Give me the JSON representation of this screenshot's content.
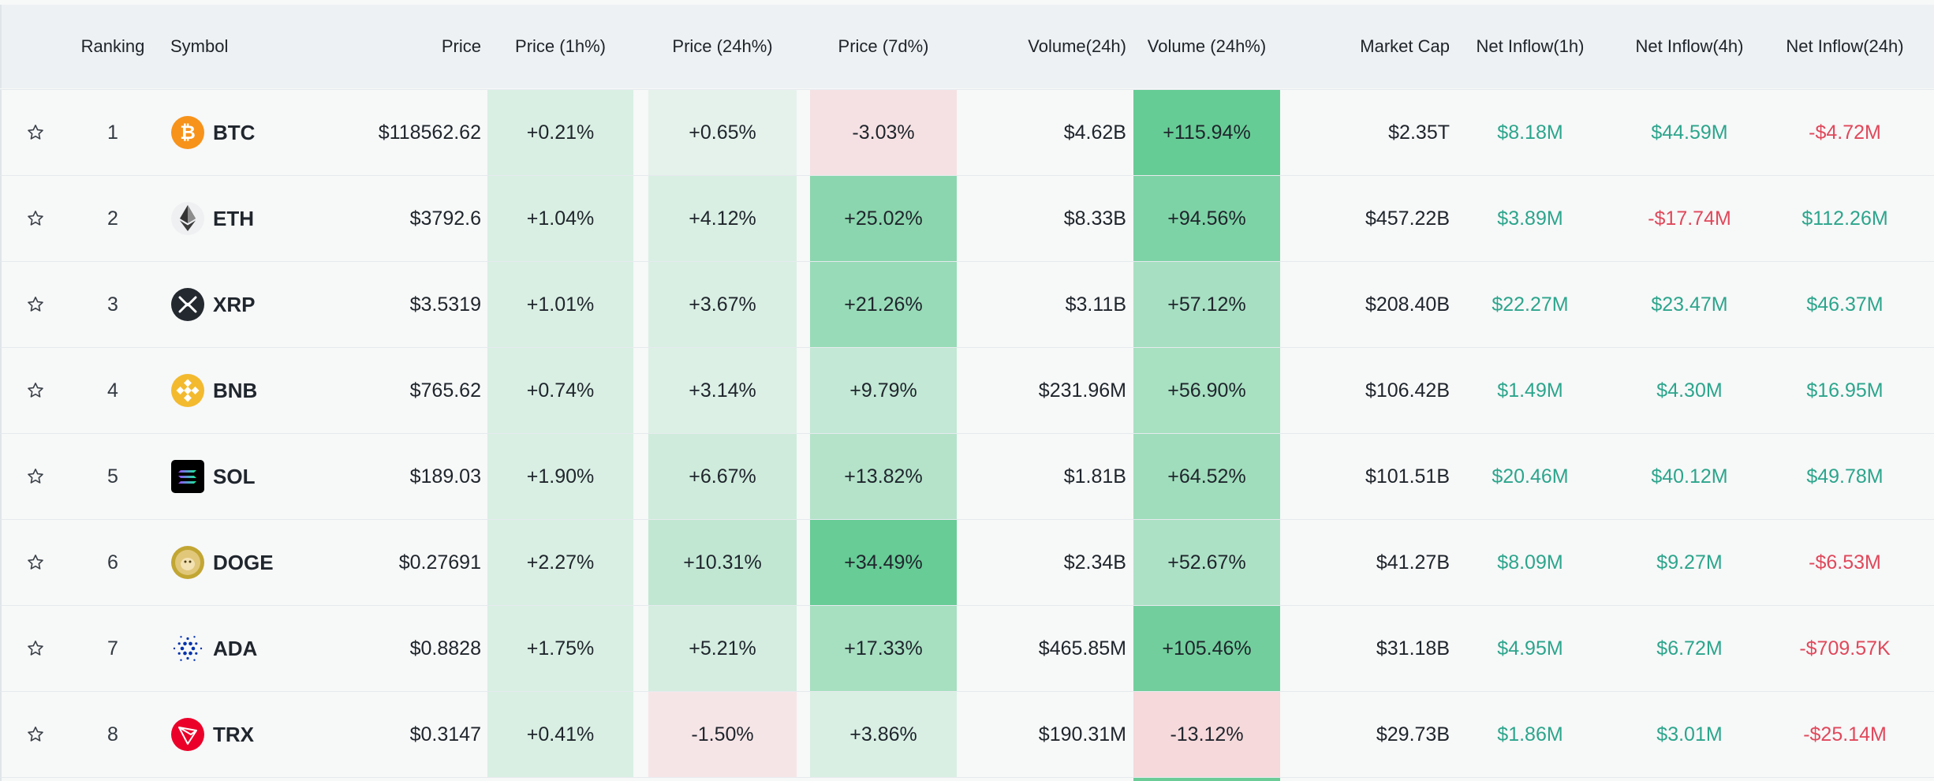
{
  "columns": {
    "ranking": "Ranking",
    "symbol": "Symbol",
    "price": "Price",
    "price_1h": "Price (1h%)",
    "price_24h": "Price (24h%)",
    "price_7d": "Price (7d%)",
    "volume_24h": "Volume(24h)",
    "volume_24h_pct": "Volume (24h%)",
    "market_cap": "Market Cap",
    "inflow_1h": "Net Inflow(1h)",
    "inflow_4h": "Net Inflow(4h)",
    "inflow_24h": "Net Inflow(24h)"
  },
  "colors": {
    "positive_text": "#2ca58c",
    "negative_text": "#e0485b",
    "header_bg": "#edf1f3",
    "row_bg": "#f7f8f8"
  },
  "rows": [
    {
      "rank": "1",
      "symbol": "BTC",
      "icon": "btc-coin-icon",
      "price": "$118562.62",
      "p1h": "+0.21%",
      "p24h": "+0.65%",
      "p7d": "-3.03%",
      "vol": "$4.62B",
      "volpct": "+115.94%",
      "mcap": "$2.35T",
      "in1h": "$8.18M",
      "in4h": "$44.59M",
      "in24h": "-$4.72M"
    },
    {
      "rank": "2",
      "symbol": "ETH",
      "icon": "eth-coin-icon",
      "price": "$3792.6",
      "p1h": "+1.04%",
      "p24h": "+4.12%",
      "p7d": "+25.02%",
      "vol": "$8.33B",
      "volpct": "+94.56%",
      "mcap": "$457.22B",
      "in1h": "$3.89M",
      "in4h": "-$17.74M",
      "in24h": "$112.26M"
    },
    {
      "rank": "3",
      "symbol": "XRP",
      "icon": "xrp-coin-icon",
      "price": "$3.5319",
      "p1h": "+1.01%",
      "p24h": "+3.67%",
      "p7d": "+21.26%",
      "vol": "$3.11B",
      "volpct": "+57.12%",
      "mcap": "$208.40B",
      "in1h": "$22.27M",
      "in4h": "$23.47M",
      "in24h": "$46.37M"
    },
    {
      "rank": "4",
      "symbol": "BNB",
      "icon": "bnb-coin-icon",
      "price": "$765.62",
      "p1h": "+0.74%",
      "p24h": "+3.14%",
      "p7d": "+9.79%",
      "vol": "$231.96M",
      "volpct": "+56.90%",
      "mcap": "$106.42B",
      "in1h": "$1.49M",
      "in4h": "$4.30M",
      "in24h": "$16.95M"
    },
    {
      "rank": "5",
      "symbol": "SOL",
      "icon": "sol-coin-icon",
      "price": "$189.03",
      "p1h": "+1.90%",
      "p24h": "+6.67%",
      "p7d": "+13.82%",
      "vol": "$1.81B",
      "volpct": "+64.52%",
      "mcap": "$101.51B",
      "in1h": "$20.46M",
      "in4h": "$40.12M",
      "in24h": "$49.78M"
    },
    {
      "rank": "6",
      "symbol": "DOGE",
      "icon": "doge-coin-icon",
      "price": "$0.27691",
      "p1h": "+2.27%",
      "p24h": "+10.31%",
      "p7d": "+34.49%",
      "vol": "$2.34B",
      "volpct": "+52.67%",
      "mcap": "$41.27B",
      "in1h": "$8.09M",
      "in4h": "$9.27M",
      "in24h": "-$6.53M"
    },
    {
      "rank": "7",
      "symbol": "ADA",
      "icon": "ada-coin-icon",
      "price": "$0.8828",
      "p1h": "+1.75%",
      "p24h": "+5.21%",
      "p7d": "+17.33%",
      "vol": "$465.85M",
      "volpct": "+105.46%",
      "mcap": "$31.18B",
      "in1h": "$4.95M",
      "in4h": "$6.72M",
      "in24h": "-$709.57K"
    },
    {
      "rank": "8",
      "symbol": "TRX",
      "icon": "trx-coin-icon",
      "price": "$0.3147",
      "p1h": "+0.41%",
      "p24h": "-1.50%",
      "p7d": "+3.86%",
      "vol": "$190.31M",
      "volpct": "-13.12%",
      "mcap": "$29.73B",
      "in1h": "$1.86M",
      "in4h": "$3.01M",
      "in24h": "-$25.14M"
    }
  ]
}
